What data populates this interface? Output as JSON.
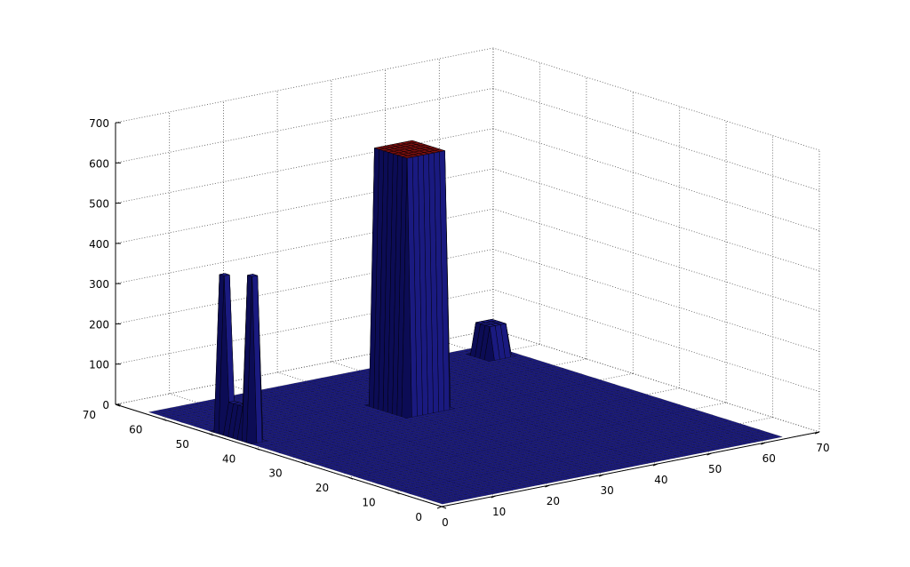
{
  "chart_data": {
    "type": "surface",
    "title": "",
    "xlabel": "",
    "ylabel": "",
    "zlabel": "",
    "xlim": [
      0,
      70
    ],
    "ylim": [
      0,
      70
    ],
    "zlim": [
      0,
      700
    ],
    "x_ticks": [
      0,
      10,
      20,
      30,
      40,
      50,
      60,
      70
    ],
    "y_ticks": [
      0,
      10,
      20,
      30,
      40,
      50,
      60,
      70
    ],
    "z_ticks": [
      0,
      100,
      200,
      300,
      400,
      500,
      600,
      700
    ],
    "grid": true,
    "surface_domain": {
      "x": [
        1,
        64
      ],
      "y": [
        1,
        64
      ]
    },
    "baseline": 0,
    "features": [
      {
        "name": "main column",
        "x_range": [
          29,
          36
        ],
        "y_range": [
          41,
          48
        ],
        "height": 640
      },
      {
        "name": "left spike",
        "x_range": [
          2,
          3
        ],
        "y_range": [
          49,
          50
        ],
        "height": 390
      },
      {
        "name": "right spike",
        "x_range": [
          2,
          3
        ],
        "y_range": [
          43,
          44
        ],
        "height": 410
      },
      {
        "name": "ridge between spikes",
        "x_range": [
          2,
          3
        ],
        "y_range": [
          44,
          49
        ],
        "height": 80
      },
      {
        "name": "small block",
        "x_range": [
          59,
          62
        ],
        "y_range": [
          58,
          61
        ],
        "height": 80
      }
    ],
    "colors": {
      "surface": "#1a1a80",
      "surface_dark": "#0c0c55",
      "peak_top": "#7a1010",
      "edges": "#000000"
    }
  }
}
